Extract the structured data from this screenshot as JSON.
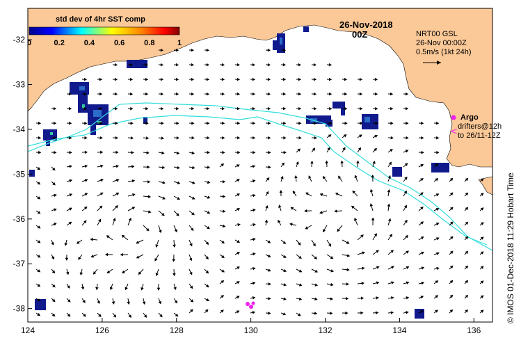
{
  "map": {
    "date_title": "26-Nov-2018",
    "time_title": "00Z",
    "colorbar": {
      "title": "std dev of 4hr SST comp",
      "ticks": [
        "0",
        "0.2",
        "0.4",
        "0.6",
        "0.8",
        "1"
      ],
      "range": [
        0,
        1
      ]
    },
    "x_ticks": [
      "124",
      "126",
      "128",
      "130",
      "132",
      "134",
      "136"
    ],
    "y_ticks": [
      "-32",
      "-33",
      "-34",
      "-35",
      "-36",
      "-37",
      "-38"
    ],
    "lon_range": [
      124,
      136.5
    ],
    "lat_range": [
      -38.3,
      -31.3
    ],
    "current_info": {
      "line1": "NRT00 GSL",
      "line2": "26-Nov 00:00Z",
      "line3": "0.5m/s (1kt 24h)"
    },
    "legend": {
      "argo_label": "Argo",
      "drifters_line1": "drifters@12h",
      "drifters_line2": "to 26/11-12Z"
    },
    "credit": "© IMOS 01-Dec-2018 11:29 Hobart Time",
    "colors": {
      "land": "#fbc898",
      "ocean": "#ffffff",
      "track": "#33dddd",
      "argo": "#ee22ee",
      "patch_dark": "#101a8c",
      "patch_mid": "#2a6cc8",
      "patch_light": "#35c8a0"
    }
  }
}
